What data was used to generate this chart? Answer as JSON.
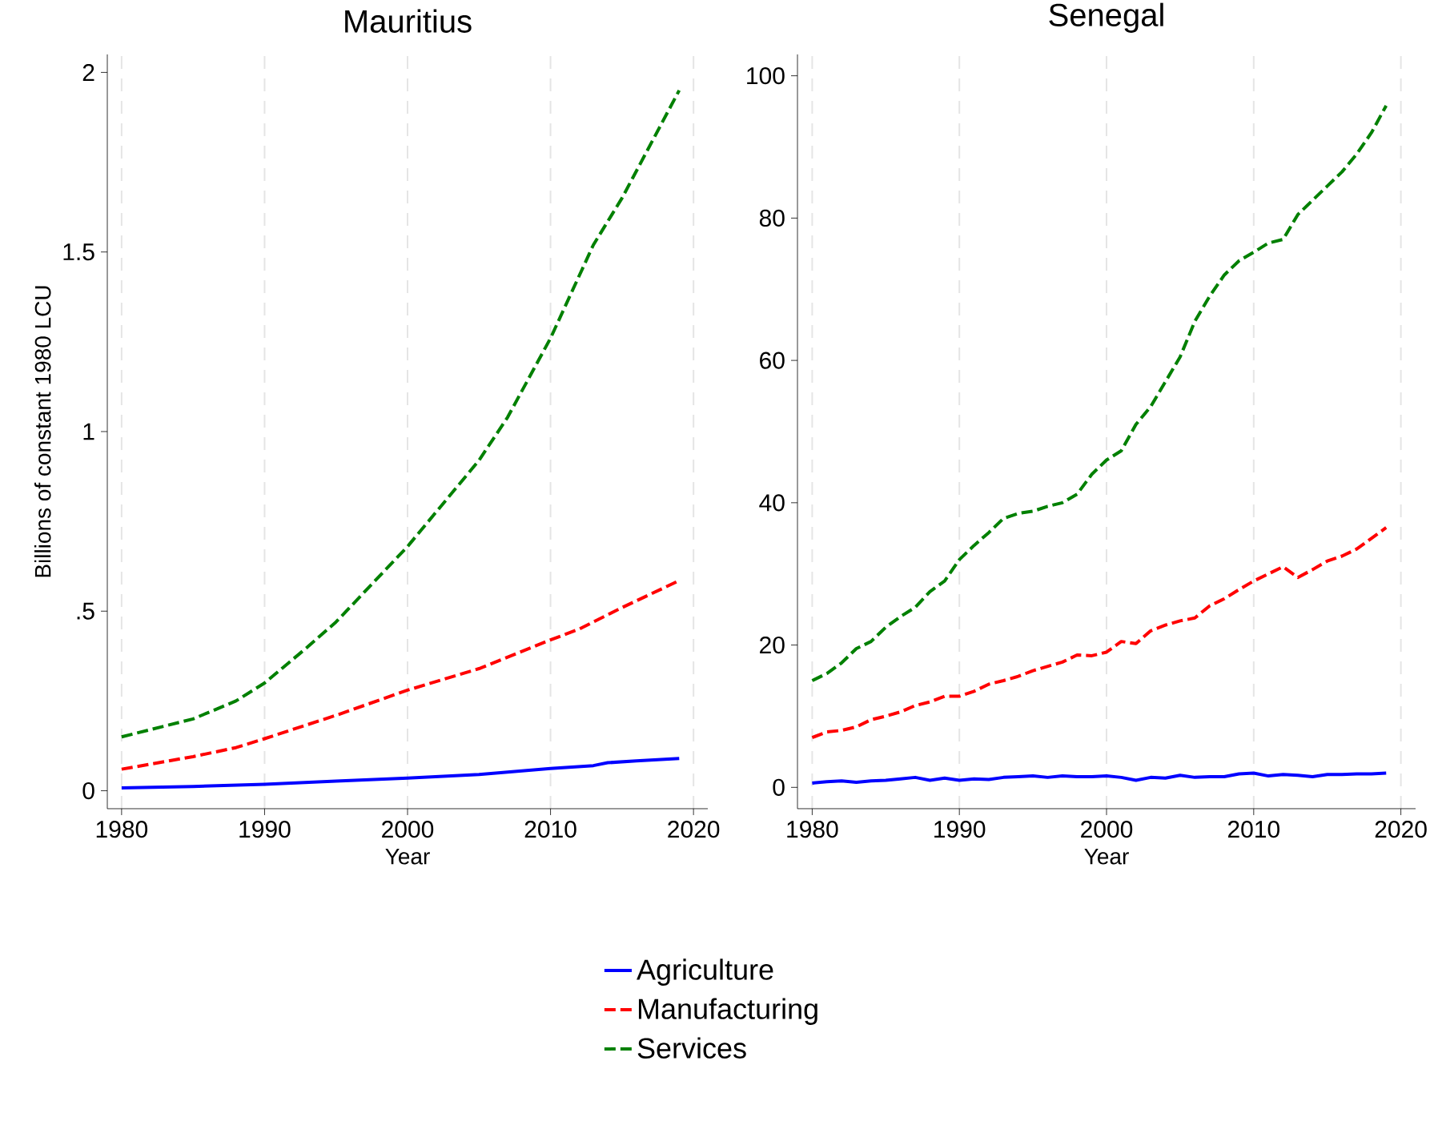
{
  "chart_data": [
    {
      "type": "line",
      "title": "Mauritius",
      "xlabel": "Year",
      "ylabel": "Billions of constant 1980 LCU",
      "xlim": [
        1979,
        2021
      ],
      "xticks": [
        1980,
        1990,
        2000,
        2010,
        2020
      ],
      "ylim": [
        -0.05,
        2.05
      ],
      "yticks": [
        0,
        {
          "value": 0.5,
          "label": ".5"
        },
        1,
        1.5,
        2
      ],
      "grid": "x",
      "legend": "bottom",
      "series": [
        {
          "name": "Agriculture",
          "color": "#0000ff",
          "line_style": "solid",
          "x": [
            1980,
            1985,
            1990,
            1995,
            2000,
            2005,
            2010,
            2013,
            2014,
            2016,
            2019
          ],
          "values": [
            0.008,
            0.012,
            0.018,
            0.027,
            0.035,
            0.045,
            0.062,
            0.07,
            0.078,
            0.083,
            0.09
          ]
        },
        {
          "name": "Manufacturing",
          "color": "#ff0000",
          "line_style": "dashed",
          "x": [
            1980,
            1985,
            1988,
            1990,
            1995,
            2000,
            2005,
            2010,
            2012,
            2015,
            2019
          ],
          "values": [
            0.06,
            0.095,
            0.12,
            0.145,
            0.21,
            0.28,
            0.34,
            0.42,
            0.45,
            0.51,
            0.585
          ]
        },
        {
          "name": "Services",
          "color": "#008000",
          "line_style": "dashed",
          "x": [
            1980,
            1985,
            1988,
            1990,
            1993,
            1995,
            2000,
            2005,
            2007,
            2010,
            2013,
            2015,
            2019
          ],
          "values": [
            0.15,
            0.2,
            0.25,
            0.3,
            0.4,
            0.47,
            0.68,
            0.92,
            1.04,
            1.26,
            1.52,
            1.65,
            1.95
          ]
        }
      ]
    },
    {
      "type": "line",
      "title": "Senegal",
      "xlabel": "Year",
      "xlim": [
        1979,
        2021
      ],
      "xticks": [
        1980,
        1990,
        2000,
        2010,
        2020
      ],
      "ylim": [
        -3,
        103
      ],
      "yticks": [
        0,
        20,
        40,
        60,
        80,
        100
      ],
      "grid": "x",
      "series": [
        {
          "color": "#0000ff",
          "line_style": "solid",
          "x": [
            1980,
            1981,
            1982,
            1983,
            1984,
            1985,
            1986,
            1987,
            1988,
            1989,
            1990,
            1991,
            1992,
            1993,
            1994,
            1995,
            1996,
            1997,
            1998,
            1999,
            2000,
            2001,
            2002,
            2003,
            2004,
            2005,
            2006,
            2007,
            2008,
            2009,
            2010,
            2011,
            2012,
            2013,
            2014,
            2015,
            2016,
            2017,
            2018,
            2019
          ],
          "values": [
            0.6,
            0.8,
            0.9,
            0.7,
            0.9,
            1.0,
            1.2,
            1.4,
            1.0,
            1.3,
            1.0,
            1.2,
            1.1,
            1.4,
            1.5,
            1.6,
            1.4,
            1.6,
            1.5,
            1.5,
            1.6,
            1.4,
            1.0,
            1.4,
            1.3,
            1.7,
            1.4,
            1.5,
            1.5,
            1.9,
            2.0,
            1.6,
            1.8,
            1.7,
            1.5,
            1.8,
            1.8,
            1.9,
            1.9,
            2.0
          ]
        },
        {
          "color": "#ff0000",
          "line_style": "dashed",
          "x": [
            1980,
            1981,
            1982,
            1983,
            1984,
            1985,
            1986,
            1987,
            1988,
            1989,
            1990,
            1991,
            1992,
            1993,
            1994,
            1995,
            1996,
            1997,
            1998,
            1999,
            2000,
            2001,
            2002,
            2003,
            2004,
            2005,
            2006,
            2007,
            2008,
            2009,
            2010,
            2011,
            2012,
            2013,
            2014,
            2015,
            2016,
            2017,
            2018,
            2019
          ],
          "values": [
            7,
            7.8,
            8,
            8.5,
            9.5,
            10,
            10.6,
            11.5,
            12,
            12.8,
            12.8,
            13.5,
            14.5,
            15,
            15.6,
            16.4,
            17,
            17.6,
            18.6,
            18.5,
            19,
            20.5,
            20.2,
            22,
            22.8,
            23.4,
            23.8,
            25.5,
            26.5,
            27.8,
            29,
            30,
            31,
            29.5,
            30.6,
            31.8,
            32.5,
            33.5,
            35,
            36.5
          ]
        },
        {
          "color": "#008000",
          "line_style": "dashed",
          "x": [
            1980,
            1981,
            1982,
            1983,
            1984,
            1985,
            1986,
            1987,
            1988,
            1989,
            1990,
            1991,
            1992,
            1993,
            1994,
            1995,
            1996,
            1997,
            1998,
            1999,
            2000,
            2001,
            2002,
            2003,
            2004,
            2005,
            2006,
            2007,
            2008,
            2009,
            2010,
            2011,
            2012,
            2013,
            2014,
            2015,
            2016,
            2017,
            2018,
            2019
          ],
          "values": [
            15,
            16,
            17.5,
            19.5,
            20.5,
            22.5,
            24,
            25.3,
            27.5,
            29,
            32,
            34,
            35.8,
            37.8,
            38.5,
            38.8,
            39.5,
            40,
            41.2,
            44,
            46,
            47.3,
            51,
            53.5,
            57,
            60.5,
            65.5,
            69,
            72,
            74,
            75.2,
            76.5,
            77,
            80.5,
            82.5,
            84.5,
            86.5,
            89,
            92,
            95.8
          ]
        }
      ]
    }
  ]
}
